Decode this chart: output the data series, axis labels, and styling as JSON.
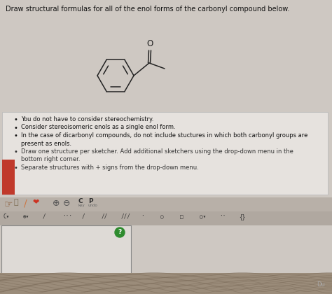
{
  "title": "Draw structural formulas for all of the enol forms of the carbonyl compound below.",
  "bullet_points": [
    "You do not have to consider stereochemistry.",
    "Consider stereoisomeric enols as a single enol form.",
    "In the case of dicarbonyl compounds, do not include stuctures in which both carbonyl groups are present as enols.",
    "Draw one structure per sketcher. Add additional sketchers using the drop-down menu in the bottom right corner.",
    "Separate structures with + signs from the drop-down menu."
  ],
  "bg_color": "#cec8c2",
  "info_box_color": "#e6e2de",
  "info_box_edge": "#bbbbbb",
  "title_color": "#111111",
  "text_color": "#111111",
  "red_bar_color": "#c0392b",
  "toolbar_bg": "#b8b0a8",
  "toolbar2_bg": "#b0a8a0",
  "sketch_bg": "#dedad6",
  "sketch_edge": "#888888",
  "green_circle": "#2e8b2e",
  "bottom_bg": "#9b8c7a",
  "mol_color": "#222222"
}
